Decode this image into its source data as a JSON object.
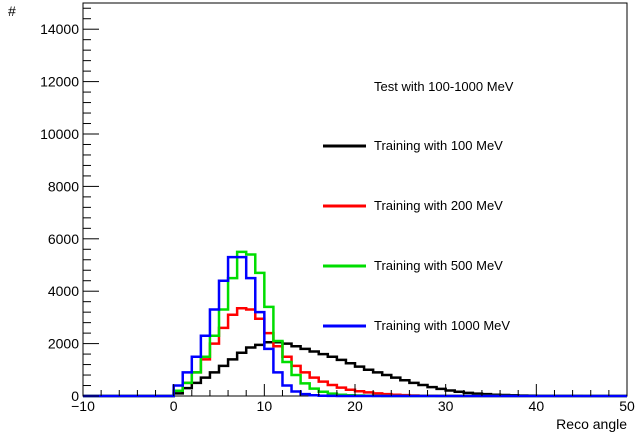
{
  "chart_data": {
    "type": "line",
    "xlabel": "Reco angle",
    "ylabel": "#",
    "xlim": [
      -10,
      50
    ],
    "ylim": [
      0,
      15000
    ],
    "x_ticks": [
      -10,
      0,
      10,
      20,
      30,
      40,
      50
    ],
    "y_ticks": [
      0,
      2000,
      4000,
      6000,
      8000,
      10000,
      12000,
      14000
    ],
    "annotation": "Test with 100-1000 MeV",
    "legend_position": "right",
    "grid": false,
    "bin_edges": [
      -10,
      0,
      1,
      2,
      3,
      4,
      5,
      6,
      7,
      8,
      9,
      10,
      11,
      12,
      13,
      14,
      15,
      16,
      17,
      18,
      19,
      20,
      21,
      22,
      23,
      24,
      25,
      26,
      27,
      28,
      29,
      30,
      31,
      32,
      33,
      34,
      35,
      36,
      37,
      38,
      39,
      40,
      41,
      42,
      43,
      44,
      45,
      46,
      47,
      48,
      49,
      50
    ],
    "series": [
      {
        "name": "Training with 100 MeV",
        "color": "#000000",
        "values": [
          0,
          100,
          300,
          500,
          700,
          900,
          1150,
          1400,
          1650,
          1850,
          1950,
          2050,
          2050,
          2000,
          1900,
          1800,
          1700,
          1600,
          1500,
          1380,
          1250,
          1120,
          1000,
          900,
          800,
          700,
          600,
          500,
          420,
          340,
          270,
          210,
          160,
          120,
          90,
          70,
          50,
          40,
          30,
          20,
          15,
          10,
          8,
          5,
          4,
          3,
          2,
          1,
          0,
          0,
          0
        ]
      },
      {
        "name": "Training with 200 MeV",
        "color": "#ff0000",
        "values": [
          0,
          200,
          500,
          900,
          1400,
          2000,
          2600,
          3100,
          3350,
          3300,
          2950,
          2400,
          1900,
          1500,
          1150,
          900,
          700,
          550,
          420,
          320,
          240,
          180,
          140,
          100,
          70,
          50,
          35,
          20,
          12,
          8,
          5,
          3,
          2,
          1,
          0,
          0,
          0,
          0,
          0,
          0,
          0,
          0,
          0,
          0,
          0,
          0,
          0,
          0,
          0,
          0,
          0
        ]
      },
      {
        "name": "Training with 500 MeV",
        "color": "#00dd00",
        "values": [
          0,
          200,
          500,
          900,
          1500,
          2300,
          3300,
          4500,
          5500,
          5400,
          4700,
          3400,
          2100,
          1300,
          800,
          480,
          280,
          160,
          90,
          50,
          30,
          18,
          10,
          5,
          2,
          1,
          0,
          0,
          0,
          0,
          0,
          0,
          0,
          0,
          0,
          0,
          0,
          0,
          0,
          0,
          0,
          0,
          0,
          0,
          0,
          0,
          0,
          0,
          0,
          0,
          0
        ]
      },
      {
        "name": "Training with 1000 MeV",
        "color": "#0000ff",
        "values": [
          0,
          400,
          900,
          1500,
          2300,
          3300,
          4400,
          5300,
          5300,
          4500,
          3200,
          1800,
          900,
          400,
          170,
          70,
          30,
          10,
          5,
          2,
          0,
          0,
          0,
          0,
          0,
          0,
          0,
          0,
          0,
          0,
          0,
          0,
          0,
          0,
          0,
          0,
          0,
          0,
          0,
          0,
          0,
          0,
          0,
          0,
          0,
          0,
          0,
          0,
          0,
          0,
          0
        ]
      }
    ]
  }
}
